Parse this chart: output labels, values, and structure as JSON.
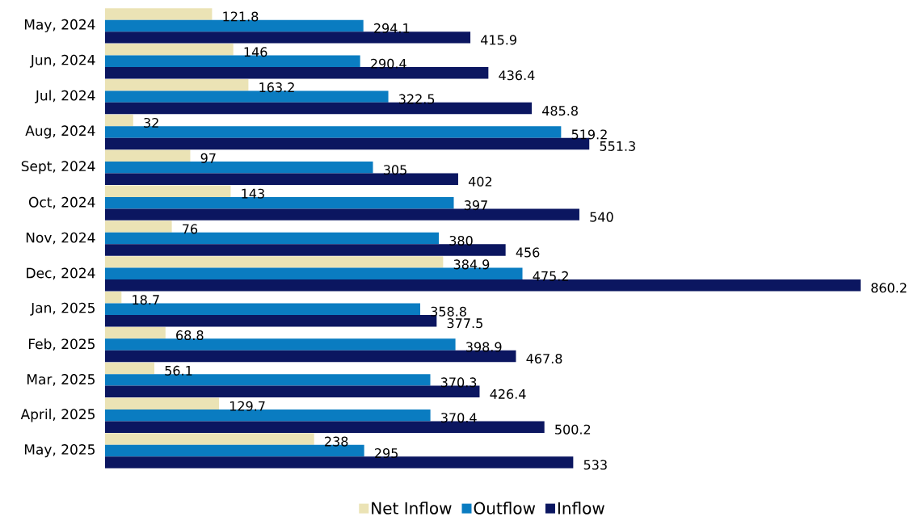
{
  "chart_data": {
    "type": "bar",
    "orientation": "horizontal",
    "categories": [
      "May, 2024",
      "Jun, 2024",
      "Jul, 2024",
      "Aug, 2024",
      "Sept, 2024",
      "Oct, 2024",
      "Nov, 2024",
      "Dec, 2024",
      "Jan, 2025",
      "Feb, 2025",
      "Mar, 2025",
      "April, 2025",
      "May, 2025"
    ],
    "series": [
      {
        "name": "Net Inflow",
        "color": "#ebe3b5",
        "values": [
          121.8,
          146,
          163.2,
          32,
          97,
          143,
          76,
          384.9,
          18.7,
          68.8,
          56.1,
          129.7,
          238
        ]
      },
      {
        "name": "Outflow",
        "color": "#0a7cc1",
        "values": [
          294.1,
          290.4,
          322.5,
          519.2,
          305,
          397,
          380,
          475.2,
          358.8,
          398.9,
          370.3,
          370.4,
          295
        ]
      },
      {
        "name": "Inflow",
        "color": "#0b1660",
        "values": [
          415.9,
          436.4,
          485.8,
          551.3,
          402,
          540,
          456,
          860.2,
          377.5,
          467.8,
          426.4,
          500.2,
          533
        ]
      }
    ],
    "data_labels": true,
    "legend": "bottom"
  }
}
